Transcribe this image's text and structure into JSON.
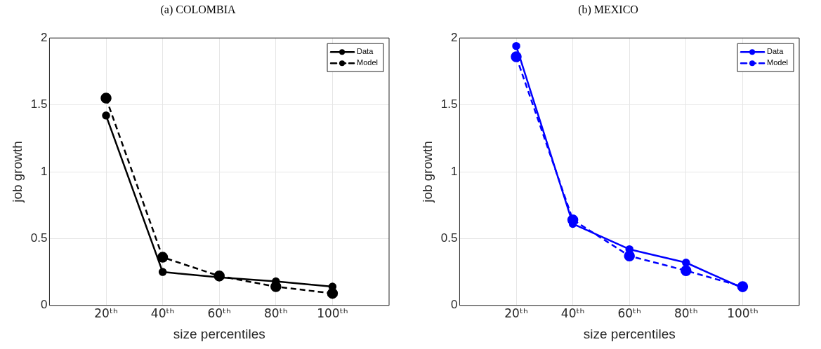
{
  "chart_data": [
    {
      "type": "line",
      "title": "(a) COLOMBIA",
      "xlabel": "size percentiles",
      "ylabel": "job growth",
      "x": [
        20,
        40,
        60,
        80,
        100
      ],
      "xlim": [
        0,
        120
      ],
      "xticks": [
        {
          "value": 20,
          "label": "20ᵗʰ"
        },
        {
          "value": 40,
          "label": "40ᵗʰ"
        },
        {
          "value": 60,
          "label": "60ᵗʰ"
        },
        {
          "value": 80,
          "label": "80ᵗʰ"
        },
        {
          "value": 100,
          "label": "100ᵗʰ"
        }
      ],
      "ylim": [
        0,
        2
      ],
      "yticks": [
        0,
        0.5,
        1,
        1.5,
        2
      ],
      "grid": true,
      "legend": "top right",
      "marker": "circle",
      "series": [
        {
          "name": "Data",
          "color": "#000000",
          "line_style": "solid",
          "values": [
            1.42,
            0.25,
            0.21,
            0.18,
            0.14
          ]
        },
        {
          "name": "Model",
          "color": "#000000",
          "line_style": "dashed",
          "values": [
            1.55,
            0.36,
            0.22,
            0.14,
            0.09
          ]
        }
      ]
    },
    {
      "type": "line",
      "title": "(b) MEXICO",
      "xlabel": "size percentiles",
      "ylabel": "job growth",
      "x": [
        20,
        40,
        60,
        80,
        100
      ],
      "xlim": [
        0,
        120
      ],
      "xticks": [
        {
          "value": 20,
          "label": "20ᵗʰ"
        },
        {
          "value": 40,
          "label": "40ᵗʰ"
        },
        {
          "value": 60,
          "label": "60ᵗʰ"
        },
        {
          "value": 80,
          "label": "80ᵗʰ"
        },
        {
          "value": 100,
          "label": "100ᵗʰ"
        }
      ],
      "ylim": [
        0,
        2
      ],
      "yticks": [
        0,
        0.5,
        1,
        1.5,
        2
      ],
      "grid": true,
      "legend": "top right",
      "marker": "circle",
      "series": [
        {
          "name": "Data",
          "color": "#0000ff",
          "line_style": "solid",
          "values": [
            1.94,
            0.61,
            0.42,
            0.32,
            0.13
          ]
        },
        {
          "name": "Model",
          "color": "#0000ff",
          "line_style": "dashed",
          "values": [
            1.86,
            0.64,
            0.37,
            0.26,
            0.14
          ]
        }
      ]
    }
  ]
}
